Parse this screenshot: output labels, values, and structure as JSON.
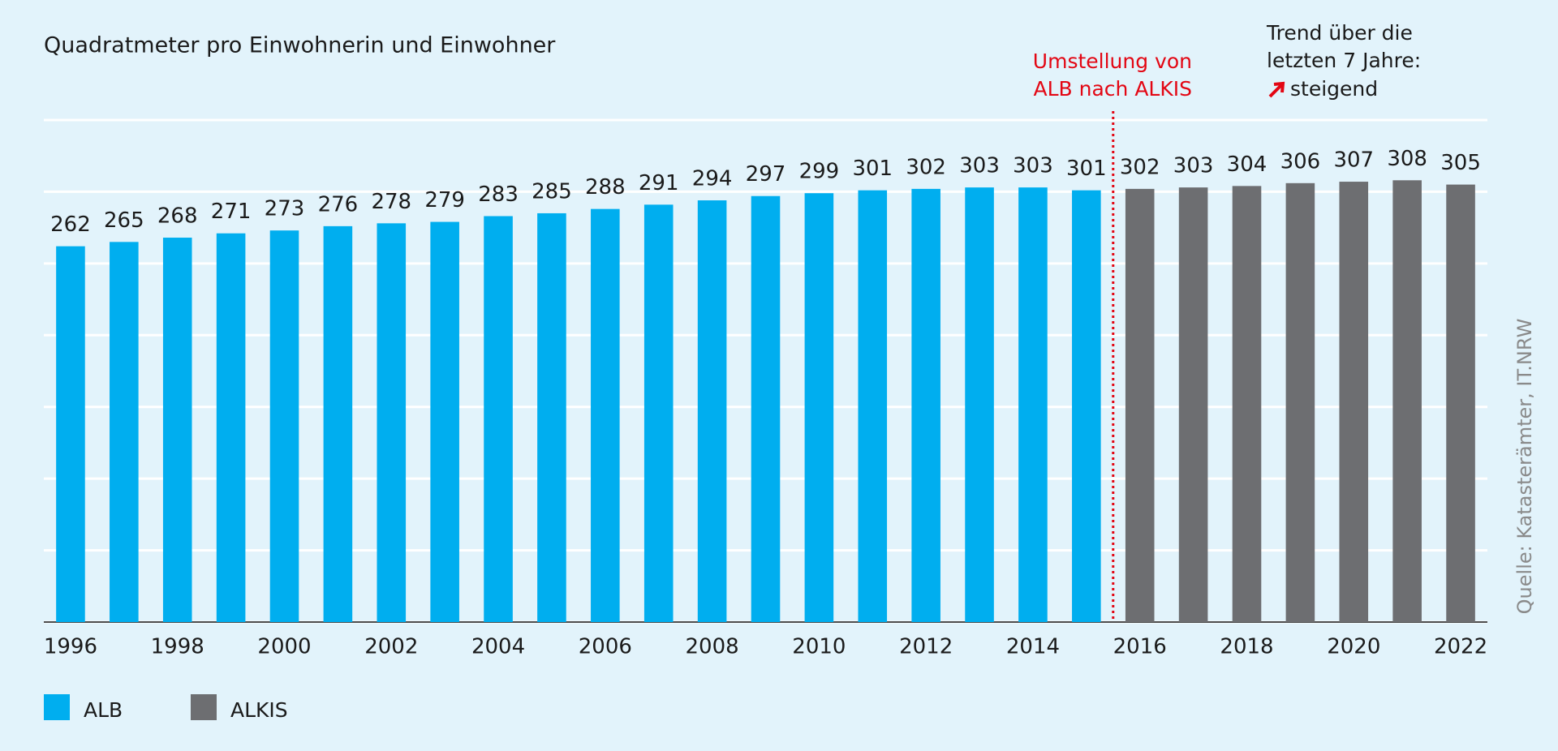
{
  "chart_data": {
    "type": "bar",
    "title": "Quadratmeter pro Einwohnerin und Einwohner",
    "categories": [
      "1996",
      null,
      "1998",
      null,
      "2000",
      null,
      "2002",
      null,
      "2004",
      null,
      "2006",
      null,
      "2008",
      null,
      "2010",
      null,
      "2012",
      null,
      "2014",
      null,
      "2016",
      null,
      "2018",
      null,
      "2020",
      null,
      "2022"
    ],
    "series": [
      {
        "name": "ALB",
        "color": "#00aeef",
        "values": [
          262,
          265,
          268,
          271,
          273,
          276,
          278,
          279,
          283,
          285,
          288,
          291,
          294,
          297,
          299,
          301,
          302,
          303,
          303,
          301,
          null,
          null,
          null,
          null,
          null,
          null,
          null
        ]
      },
      {
        "name": "ALKIS",
        "color": "#6d6e71",
        "values": [
          null,
          null,
          null,
          null,
          null,
          null,
          null,
          null,
          null,
          null,
          null,
          null,
          null,
          null,
          null,
          null,
          null,
          null,
          null,
          null,
          302,
          303,
          304,
          306,
          307,
          308,
          305
        ]
      }
    ],
    "ylim": [
      0,
      350
    ],
    "yticks": [
      0,
      50,
      100,
      150,
      200,
      250,
      300,
      350
    ],
    "grid": true,
    "annotations": {
      "switch": {
        "lines": [
          "Umstellung von",
          "ALB nach ALKIS"
        ],
        "color": "#e30613"
      },
      "trend": {
        "lines": [
          "Trend über die",
          "letzten 7 Jahre:"
        ],
        "label": "steigend"
      },
      "source": "Quelle: Katasterämter, IT.NRW"
    }
  }
}
